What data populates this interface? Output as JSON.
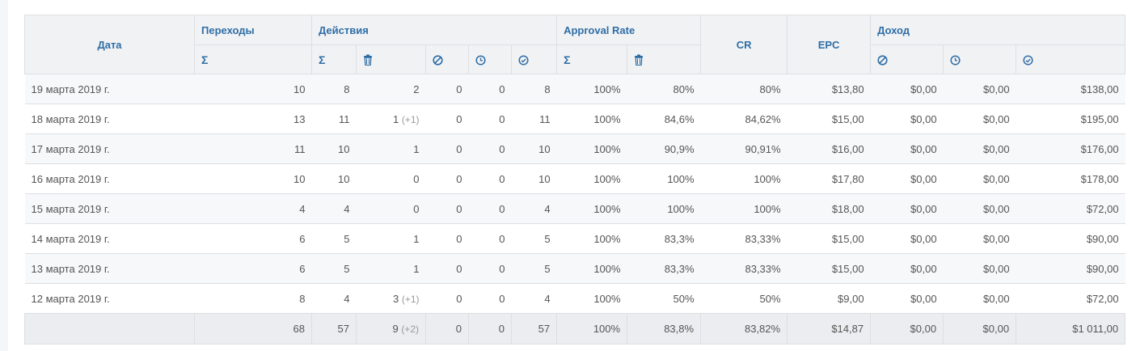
{
  "headers": {
    "date": "Дата",
    "clicks": "Переходы",
    "actions": "Действия",
    "approval_rate": "Approval Rate",
    "cr": "CR",
    "epc": "EPC",
    "income": "Доход",
    "sigma": "Σ"
  },
  "rows": [
    {
      "date": "19 марта 2019 г.",
      "clicks": "10",
      "act_total": "8",
      "act_trash": "2",
      "act_trash_extra": "",
      "act_rej": "0",
      "act_hold": "0",
      "act_ok": "8",
      "ar_total": "100%",
      "ar_trash": "80%",
      "cr": "80%",
      "epc": "$13,80",
      "inc_rej": "$0,00",
      "inc_hold": "$0,00",
      "inc_ok": "$138,00"
    },
    {
      "date": "18 марта 2019 г.",
      "clicks": "13",
      "act_total": "11",
      "act_trash": "1",
      "act_trash_extra": "(+1)",
      "act_rej": "0",
      "act_hold": "0",
      "act_ok": "11",
      "ar_total": "100%",
      "ar_trash": "84,6%",
      "cr": "84,62%",
      "epc": "$15,00",
      "inc_rej": "$0,00",
      "inc_hold": "$0,00",
      "inc_ok": "$195,00"
    },
    {
      "date": "17 марта 2019 г.",
      "clicks": "11",
      "act_total": "10",
      "act_trash": "1",
      "act_trash_extra": "",
      "act_rej": "0",
      "act_hold": "0",
      "act_ok": "10",
      "ar_total": "100%",
      "ar_trash": "90,9%",
      "cr": "90,91%",
      "epc": "$16,00",
      "inc_rej": "$0,00",
      "inc_hold": "$0,00",
      "inc_ok": "$176,00"
    },
    {
      "date": "16 марта 2019 г.",
      "clicks": "10",
      "act_total": "10",
      "act_trash": "0",
      "act_trash_extra": "",
      "act_rej": "0",
      "act_hold": "0",
      "act_ok": "10",
      "ar_total": "100%",
      "ar_trash": "100%",
      "cr": "100%",
      "epc": "$17,80",
      "inc_rej": "$0,00",
      "inc_hold": "$0,00",
      "inc_ok": "$178,00"
    },
    {
      "date": "15 марта 2019 г.",
      "clicks": "4",
      "act_total": "4",
      "act_trash": "0",
      "act_trash_extra": "",
      "act_rej": "0",
      "act_hold": "0",
      "act_ok": "4",
      "ar_total": "100%",
      "ar_trash": "100%",
      "cr": "100%",
      "epc": "$18,00",
      "inc_rej": "$0,00",
      "inc_hold": "$0,00",
      "inc_ok": "$72,00"
    },
    {
      "date": "14 марта 2019 г.",
      "clicks": "6",
      "act_total": "5",
      "act_trash": "1",
      "act_trash_extra": "",
      "act_rej": "0",
      "act_hold": "0",
      "act_ok": "5",
      "ar_total": "100%",
      "ar_trash": "83,3%",
      "cr": "83,33%",
      "epc": "$15,00",
      "inc_rej": "$0,00",
      "inc_hold": "$0,00",
      "inc_ok": "$90,00"
    },
    {
      "date": "13 марта 2019 г.",
      "clicks": "6",
      "act_total": "5",
      "act_trash": "1",
      "act_trash_extra": "",
      "act_rej": "0",
      "act_hold": "0",
      "act_ok": "5",
      "ar_total": "100%",
      "ar_trash": "83,3%",
      "cr": "83,33%",
      "epc": "$15,00",
      "inc_rej": "$0,00",
      "inc_hold": "$0,00",
      "inc_ok": "$90,00"
    },
    {
      "date": "12 марта 2019 г.",
      "clicks": "8",
      "act_total": "4",
      "act_trash": "3",
      "act_trash_extra": "(+1)",
      "act_rej": "0",
      "act_hold": "0",
      "act_ok": "4",
      "ar_total": "100%",
      "ar_trash": "50%",
      "cr": "50%",
      "epc": "$9,00",
      "inc_rej": "$0,00",
      "inc_hold": "$0,00",
      "inc_ok": "$72,00"
    }
  ],
  "totals": {
    "date": "",
    "clicks": "68",
    "act_total": "57",
    "act_trash": "9",
    "act_trash_extra": "(+2)",
    "act_rej": "0",
    "act_hold": "0",
    "act_ok": "57",
    "ar_total": "100%",
    "ar_trash": "83,8%",
    "cr": "83,82%",
    "epc": "$14,87",
    "inc_rej": "$0,00",
    "inc_hold": "$0,00",
    "inc_ok": "$1 011,00"
  },
  "colors": {
    "header_text": "#2f6ea6",
    "header_bg": "#f1f2f4",
    "row_alt": "#f7f8fa",
    "border": "#dcdfe3"
  }
}
